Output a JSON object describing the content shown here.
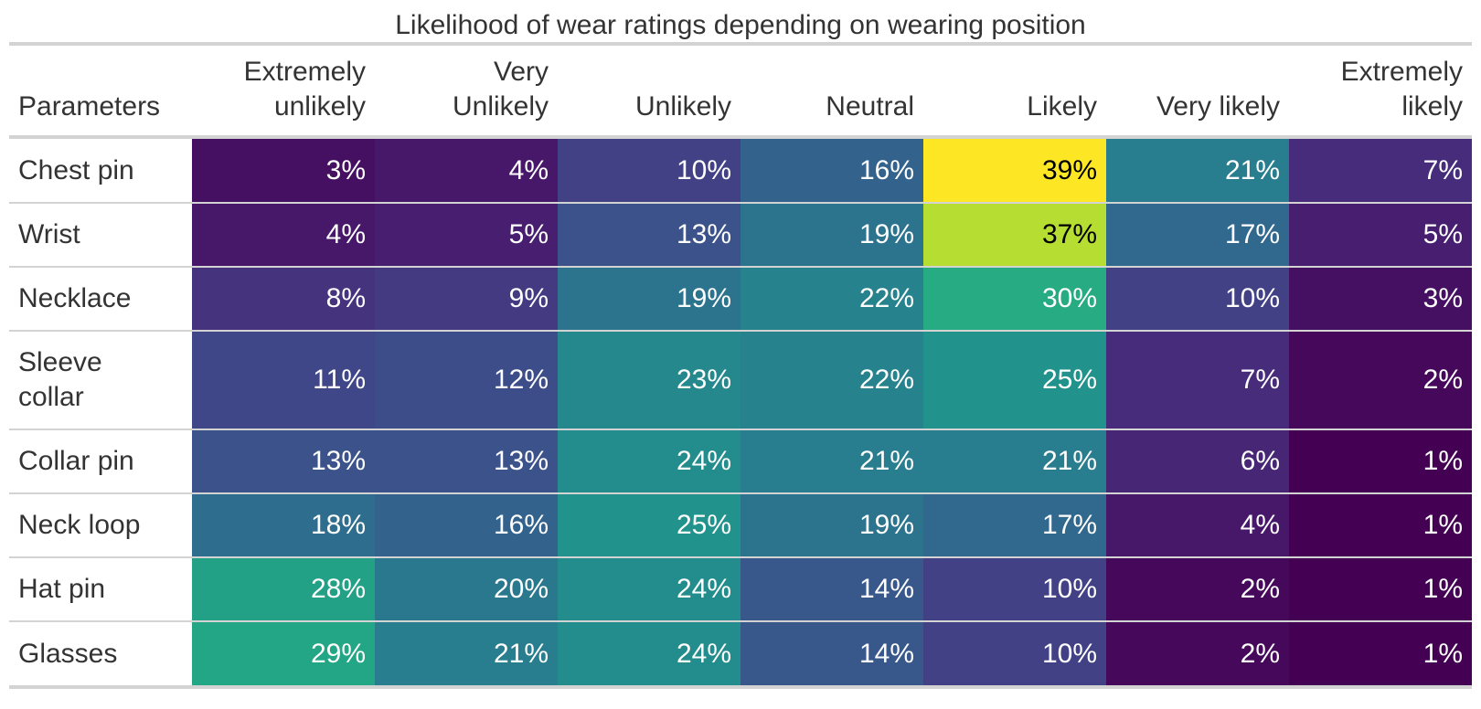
{
  "chart_data": {
    "type": "table",
    "title": "Likelihood of wear ratings depending on wearing position",
    "row_header": "Parameters",
    "columns": [
      "Extremely unlikely",
      "Very Unlikely",
      "Unlikely",
      "Neutral",
      "Likely",
      "Very likely",
      "Extremely likely"
    ],
    "column_lines": [
      [
        "Extremely",
        "unlikely"
      ],
      [
        "Very",
        "Unlikely"
      ],
      [
        "",
        "Unlikely"
      ],
      [
        "",
        "Neutral"
      ],
      [
        "",
        "Likely"
      ],
      [
        "",
        "Very likely"
      ],
      [
        "Extremely",
        "likely"
      ]
    ],
    "rows": [
      {
        "label": "Chest pin",
        "values": [
          3,
          4,
          10,
          16,
          39,
          21,
          7
        ]
      },
      {
        "label": "Wrist",
        "values": [
          4,
          5,
          13,
          19,
          37,
          17,
          5
        ]
      },
      {
        "label": "Necklace",
        "values": [
          8,
          9,
          19,
          22,
          30,
          10,
          3
        ]
      },
      {
        "label": "Sleeve collar",
        "label_lines": [
          "Sleeve",
          "collar"
        ],
        "values": [
          11,
          12,
          23,
          22,
          25,
          7,
          2
        ]
      },
      {
        "label": "Collar pin",
        "values": [
          13,
          13,
          24,
          21,
          21,
          6,
          1
        ]
      },
      {
        "label": "Neck loop",
        "values": [
          18,
          16,
          25,
          19,
          17,
          4,
          1
        ]
      },
      {
        "label": "Hat pin",
        "values": [
          28,
          20,
          24,
          14,
          10,
          2,
          1
        ]
      },
      {
        "label": "Glasses",
        "values": [
          29,
          21,
          24,
          14,
          10,
          2,
          1
        ]
      }
    ],
    "unit": "%",
    "color_scale": "viridis",
    "color_domain": [
      1,
      39
    ]
  }
}
